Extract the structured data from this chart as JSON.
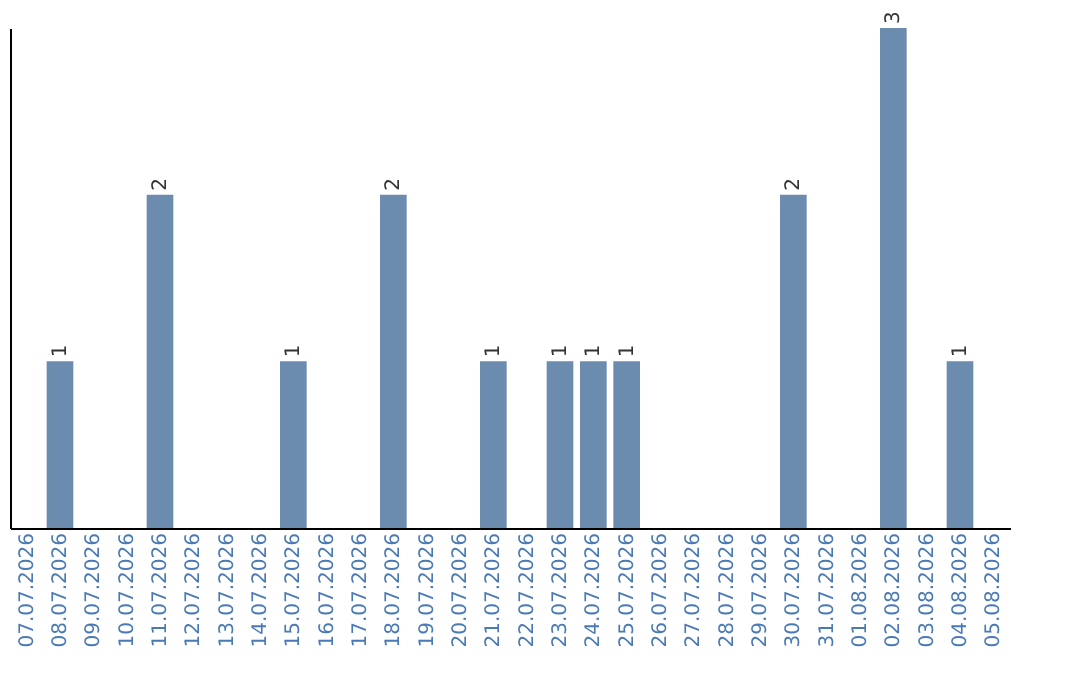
{
  "chart_data": {
    "type": "bar",
    "categories": [
      "07.07.2026",
      "08.07.2026",
      "09.07.2026",
      "10.07.2026",
      "11.07.2026",
      "12.07.2026",
      "13.07.2026",
      "14.07.2026",
      "15.07.2026",
      "16.07.2026",
      "17.07.2026",
      "18.07.2026",
      "19.07.2026",
      "20.07.2026",
      "21.07.2026",
      "22.07.2026",
      "23.07.2026",
      "24.07.2026",
      "25.07.2026",
      "26.07.2026",
      "27.07.2026",
      "28.07.2026",
      "29.07.2026",
      "30.07.2026",
      "31.07.2026",
      "01.08.2026",
      "02.08.2026",
      "03.08.2026",
      "04.08.2026",
      "05.08.2026"
    ],
    "values": [
      0,
      1,
      0,
      0,
      2,
      0,
      0,
      0,
      1,
      0,
      0,
      2,
      0,
      0,
      1,
      0,
      1,
      1,
      1,
      0,
      0,
      0,
      0,
      2,
      0,
      0,
      3,
      0,
      1,
      0
    ],
    "value_labels": [
      null,
      "1",
      null,
      null,
      "2",
      null,
      null,
      null,
      "1",
      null,
      null,
      "2",
      null,
      null,
      "1",
      null,
      "1",
      "1",
      "1",
      null,
      null,
      null,
      null,
      "2",
      null,
      null,
      "3",
      null,
      "1",
      null
    ],
    "color": "#6b8caf",
    "tick_labels": "x",
    "grid": false
  }
}
